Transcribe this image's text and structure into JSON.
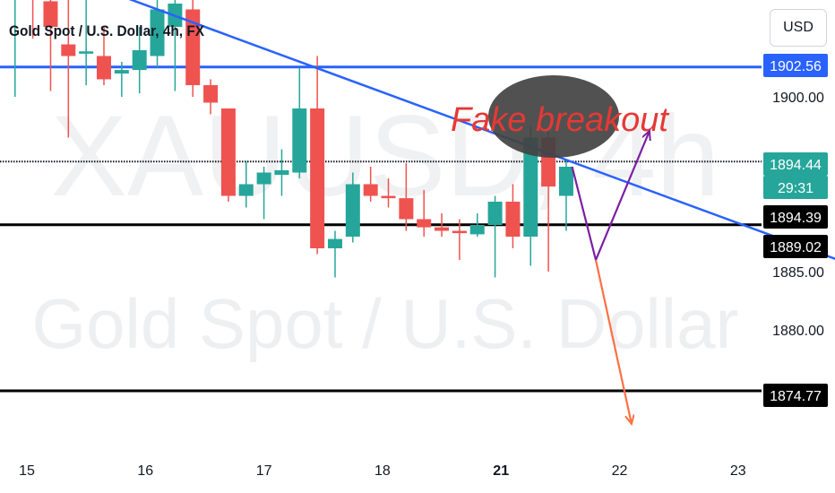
{
  "header": {
    "title": "Gold Spot / U.S. Dollar, 4h, FX",
    "currency": "USD"
  },
  "watermark": {
    "symbol": "XAUUSD, 4h",
    "description": "Gold Spot / U.S. Dollar"
  },
  "annotation": {
    "text": "Fake breakout"
  },
  "colors": {
    "up": "#26a69a",
    "down": "#ef5350",
    "trendline": "#2962ff",
    "resistance": "#2962ff",
    "support": "#000000",
    "purple_path": "#7b1fa2",
    "orange_arrow": "#ff7043",
    "annotation_text": "#e53935",
    "annotation_ellipse": "#424242"
  },
  "chart_data": {
    "type": "candlestick",
    "title": "Gold Spot / U.S. Dollar, 4h, FX",
    "x_axis": {
      "tick_labels": [
        "15",
        "16",
        "17",
        "18",
        "21",
        "22",
        "23"
      ],
      "bold_ticks": [
        "21"
      ]
    },
    "y_axis": {
      "ylim": [
        1871.6,
        1911.4
      ],
      "tick_labels": [
        "1900.00",
        "1885.00",
        "1880.00"
      ],
      "tick_values": [
        1900.0,
        1885.0,
        1880.0
      ]
    },
    "price_labels": [
      {
        "value": "1902.56",
        "style": "blue"
      },
      {
        "value": "1894.44",
        "style": "green"
      },
      {
        "value": "29:31",
        "style": "green"
      },
      {
        "value": "1894.39",
        "style": "black"
      },
      {
        "value": "1889.02",
        "style": "black"
      },
      {
        "value": "1874.77",
        "style": "black"
      }
    ],
    "horizontal_lines": [
      {
        "name": "resistance",
        "value": 1902.56,
        "color": "#2962ff"
      },
      {
        "name": "current price",
        "value": 1894.44,
        "style": "dotted",
        "color": "#131722"
      },
      {
        "name": "support",
        "value": 1889.02,
        "color": "#000000"
      },
      {
        "name": "lower support",
        "value": 1874.77,
        "color": "#000000"
      }
    ],
    "trendline": {
      "start": [
        14.9,
        1912.0
      ],
      "end": [
        23.1,
        1881.3
      ]
    },
    "candles": [
      {
        "x": 14.9,
        "o": 1909.8,
        "h": 1911.5,
        "l": 1900.0,
        "c": 1910.5
      },
      {
        "x": 15.05,
        "o": 1910.5,
        "h": 1911.5,
        "l": 1905.0,
        "c": 1908.5
      },
      {
        "x": 15.2,
        "o": 1908.2,
        "h": 1910.0,
        "l": 1900.5,
        "c": 1906.0
      },
      {
        "x": 15.35,
        "o": 1904.5,
        "h": 1909.5,
        "l": 1896.5,
        "c": 1903.5
      },
      {
        "x": 15.5,
        "o": 1903.7,
        "h": 1909.0,
        "l": 1901.0,
        "c": 1903.9
      },
      {
        "x": 15.65,
        "o": 1903.5,
        "h": 1906.0,
        "l": 1901.0,
        "c": 1901.5
      },
      {
        "x": 15.8,
        "o": 1902.0,
        "h": 1903.0,
        "l": 1900.0,
        "c": 1902.3
      },
      {
        "x": 15.95,
        "o": 1902.3,
        "h": 1906.0,
        "l": 1900.3,
        "c": 1904.0
      },
      {
        "x": 16.1,
        "o": 1903.5,
        "h": 1910.5,
        "l": 1902.5,
        "c": 1907.5
      },
      {
        "x": 16.25,
        "o": 1906.0,
        "h": 1909.0,
        "l": 1900.5,
        "c": 1908.0
      },
      {
        "x": 16.4,
        "o": 1907.5,
        "h": 1909.0,
        "l": 1900.0,
        "c": 1901.0
      },
      {
        "x": 16.55,
        "o": 1901.0,
        "h": 1901.5,
        "l": 1898.5,
        "c": 1899.5
      },
      {
        "x": 16.7,
        "o": 1899.0,
        "h": 1899.0,
        "l": 1891.0,
        "c": 1891.5
      },
      {
        "x": 16.85,
        "o": 1891.5,
        "h": 1894.5,
        "l": 1890.5,
        "c": 1892.5
      },
      {
        "x": 17.0,
        "o": 1892.5,
        "h": 1894.0,
        "l": 1889.5,
        "c": 1893.5
      },
      {
        "x": 17.15,
        "o": 1893.3,
        "h": 1895.5,
        "l": 1891.5,
        "c": 1893.7
      },
      {
        "x": 17.3,
        "o": 1893.5,
        "h": 1902.5,
        "l": 1893.0,
        "c": 1899.0
      },
      {
        "x": 17.45,
        "o": 1899.0,
        "h": 1903.5,
        "l": 1886.5,
        "c": 1887.0
      },
      {
        "x": 17.6,
        "o": 1887.0,
        "h": 1888.5,
        "l": 1884.5,
        "c": 1887.8
      },
      {
        "x": 17.75,
        "o": 1888.0,
        "h": 1893.5,
        "l": 1887.5,
        "c": 1892.5
      },
      {
        "x": 17.9,
        "o": 1892.5,
        "h": 1894.0,
        "l": 1891.0,
        "c": 1891.5
      },
      {
        "x": 18.05,
        "o": 1891.5,
        "h": 1893.0,
        "l": 1890.5,
        "c": 1891.3
      },
      {
        "x": 18.2,
        "o": 1891.3,
        "h": 1894.3,
        "l": 1888.5,
        "c": 1889.5
      },
      {
        "x": 18.35,
        "o": 1889.5,
        "h": 1892.0,
        "l": 1888.0,
        "c": 1888.8
      },
      {
        "x": 18.5,
        "o": 1888.8,
        "h": 1890.0,
        "l": 1888.0,
        "c": 1888.5
      },
      {
        "x": 18.65,
        "o": 1888.5,
        "h": 1889.5,
        "l": 1886.0,
        "c": 1888.3
      },
      {
        "x": 18.8,
        "o": 1888.2,
        "h": 1890.0,
        "l": 1888.0,
        "c": 1889.0
      },
      {
        "x": 18.95,
        "o": 1889.0,
        "h": 1891.5,
        "l": 1884.5,
        "c": 1891.0
      },
      {
        "x": 19.1,
        "o": 1891.0,
        "h": 1892.5,
        "l": 1887.0,
        "c": 1888.0
      },
      {
        "x": 19.25,
        "o": 1888.0,
        "h": 1897.5,
        "l": 1885.5,
        "c": 1896.5
      },
      {
        "x": 19.4,
        "o": 1896.5,
        "h": 1897.0,
        "l": 1885.0,
        "c": 1892.3
      },
      {
        "x": 19.55,
        "o": 1891.5,
        "h": 1894.5,
        "l": 1888.5,
        "c": 1894.0
      }
    ],
    "projections": [
      {
        "name": "purple path",
        "points": [
          [
            19.6,
            1894.0
          ],
          [
            19.8,
            1886.0
          ],
          [
            20.25,
            1897.0
          ]
        ],
        "color": "#7b1fa2",
        "arrow": true
      },
      {
        "name": "orange arrow",
        "points": [
          [
            19.8,
            1886.0
          ],
          [
            20.1,
            1872.0
          ]
        ],
        "color": "#ff7043",
        "arrow": true
      }
    ]
  }
}
